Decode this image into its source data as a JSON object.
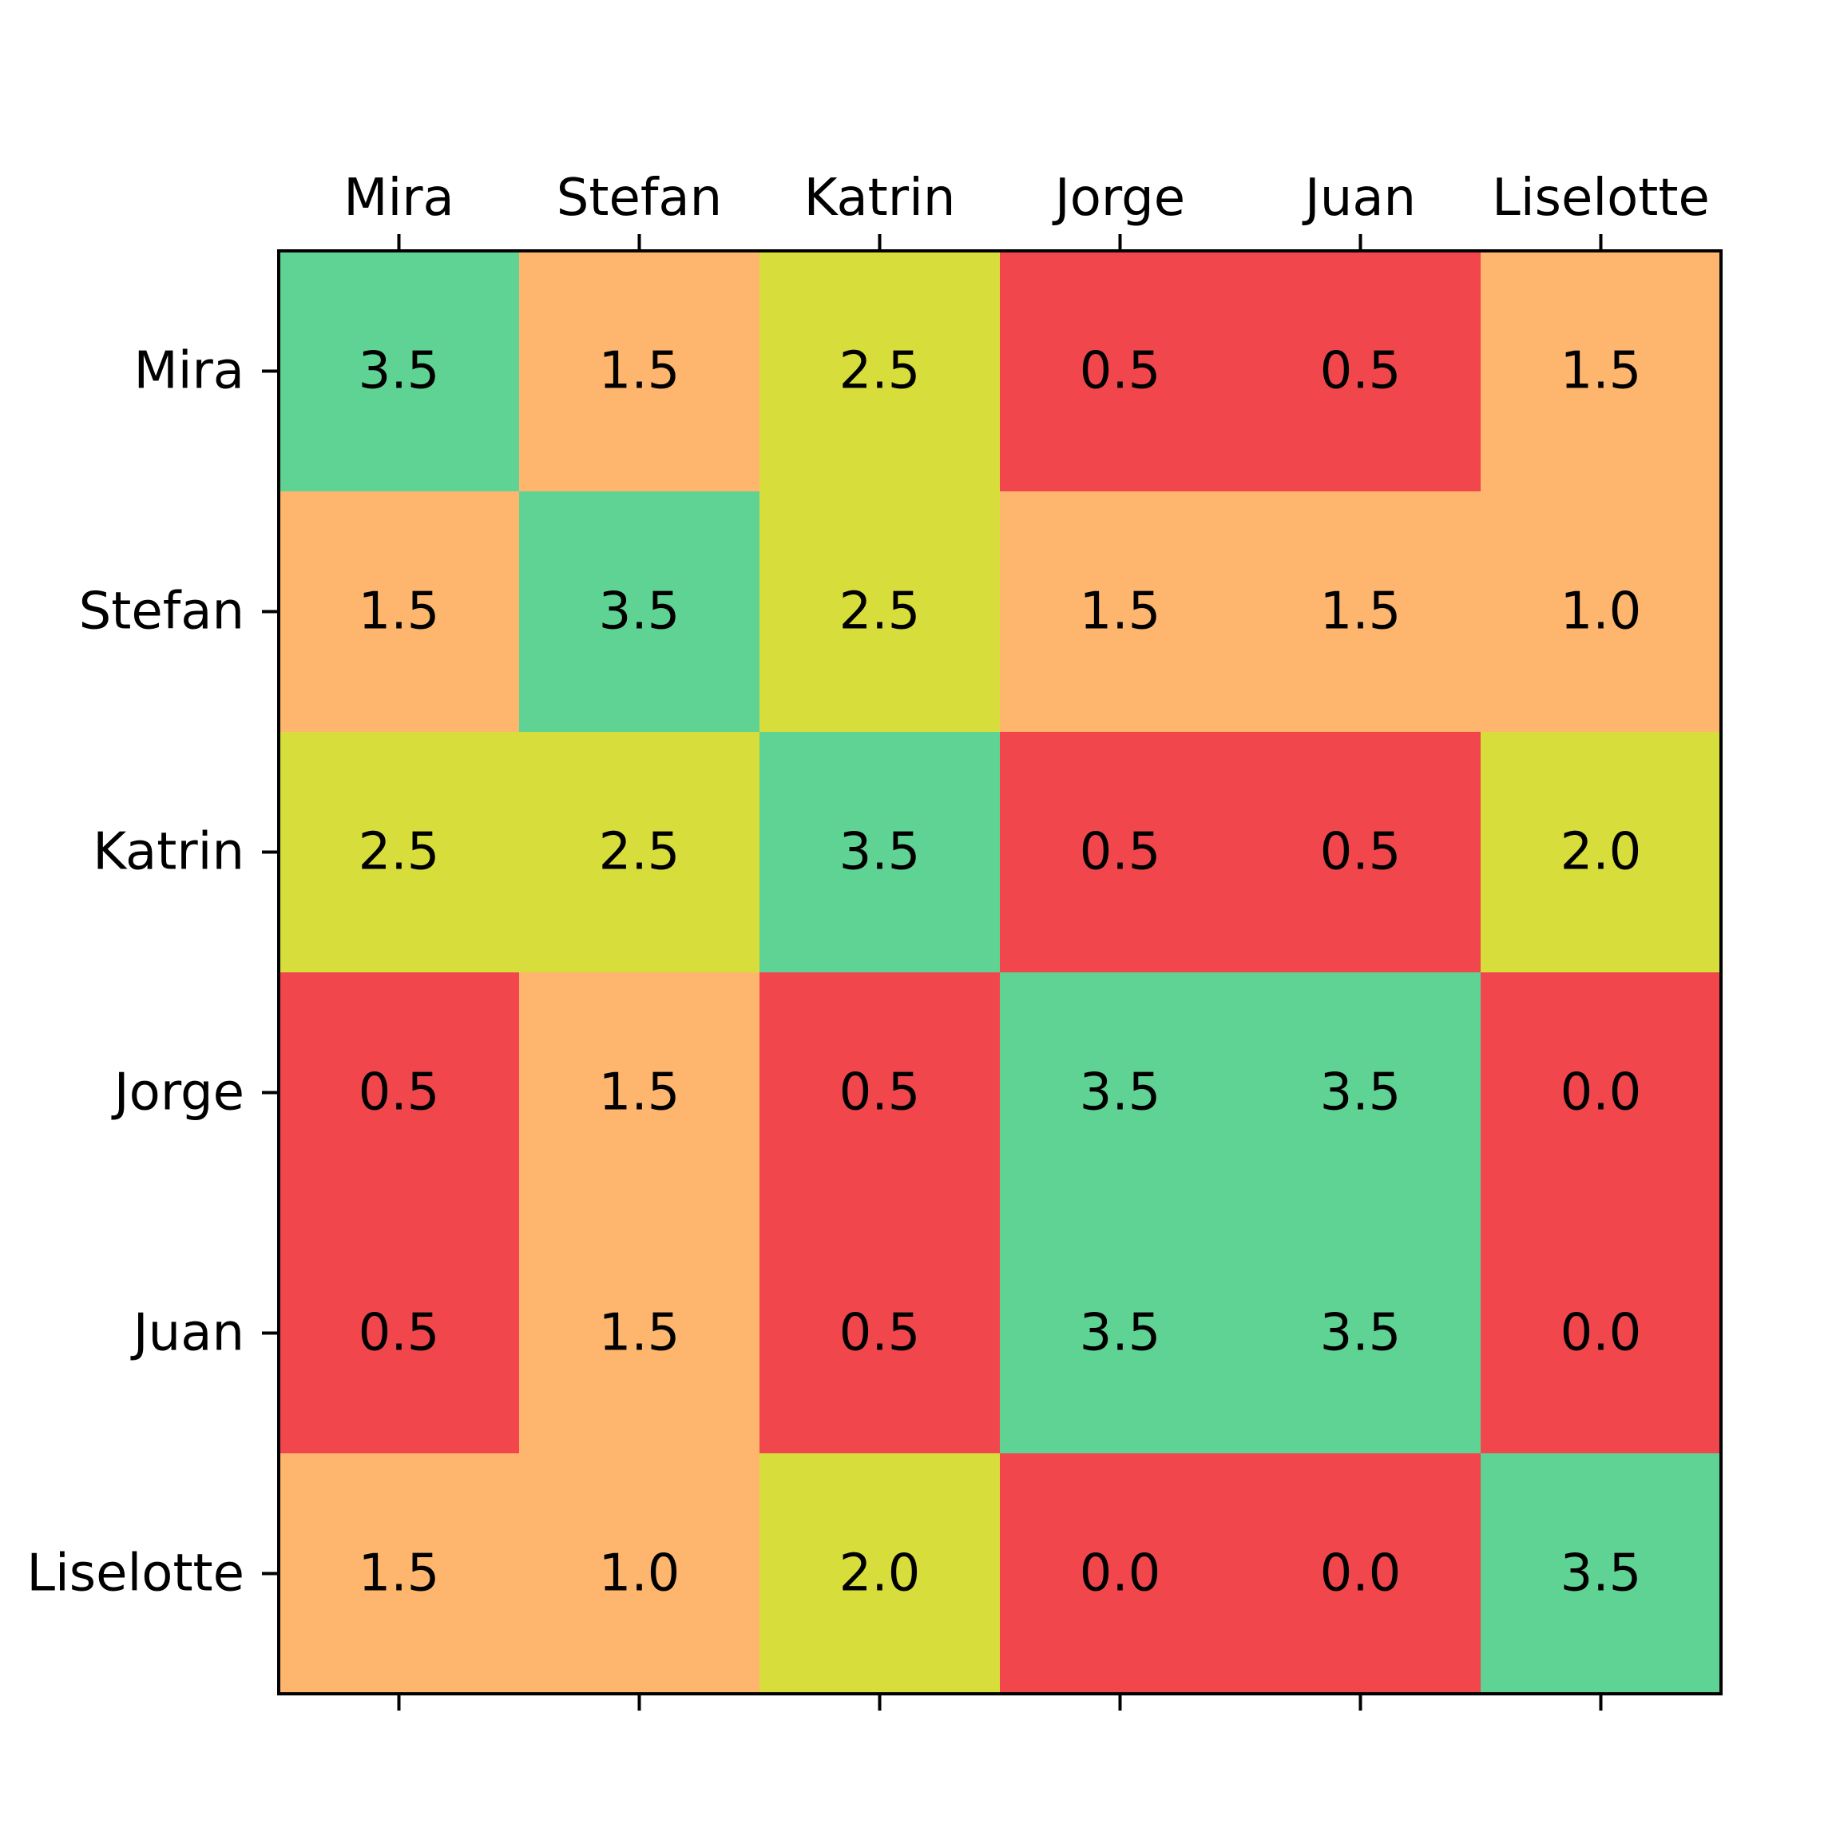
{
  "chart_data": {
    "type": "heatmap",
    "x_labels": [
      "Mira",
      "Stefan",
      "Katrin",
      "Jorge",
      "Juan",
      "Liselotte"
    ],
    "y_labels": [
      "Mira",
      "Stefan",
      "Katrin",
      "Jorge",
      "Juan",
      "Liselotte"
    ],
    "x_axis_position": "top",
    "value_labels": [
      [
        "3.5",
        "1.5",
        "2.5",
        "0.5",
        "0.5",
        "1.5"
      ],
      [
        "1.5",
        "3.5",
        "2.5",
        "1.5",
        "1.5",
        "1.0"
      ],
      [
        "2.5",
        "2.5",
        "3.5",
        "0.5",
        "0.5",
        "2.0"
      ],
      [
        "0.5",
        "1.5",
        "0.5",
        "3.5",
        "3.5",
        "0.0"
      ],
      [
        "0.5",
        "1.5",
        "0.5",
        "3.5",
        "3.5",
        "0.0"
      ],
      [
        "1.5",
        "1.0",
        "2.0",
        "0.0",
        "0.0",
        "3.5"
      ]
    ],
    "values": [
      [
        3.5,
        1.5,
        2.5,
        0.5,
        0.5,
        1.5
      ],
      [
        1.5,
        3.5,
        2.5,
        1.5,
        1.5,
        1.0
      ],
      [
        2.5,
        2.5,
        3.5,
        0.5,
        0.5,
        2.0
      ],
      [
        0.5,
        1.5,
        0.5,
        3.5,
        3.5,
        0.0
      ],
      [
        0.5,
        1.5,
        0.5,
        3.5,
        3.5,
        0.0
      ],
      [
        1.5,
        1.0,
        2.0,
        0.0,
        0.0,
        3.5
      ]
    ],
    "color_scale": [
      {
        "max": 0.75,
        "color": "#f2464d"
      },
      {
        "max": 1.75,
        "color": "#feb56d"
      },
      {
        "max": 2.75,
        "color": "#d7de3b"
      },
      {
        "max": 99,
        "color": "#5fd394"
      }
    ],
    "grid": false,
    "legend": "none"
  }
}
